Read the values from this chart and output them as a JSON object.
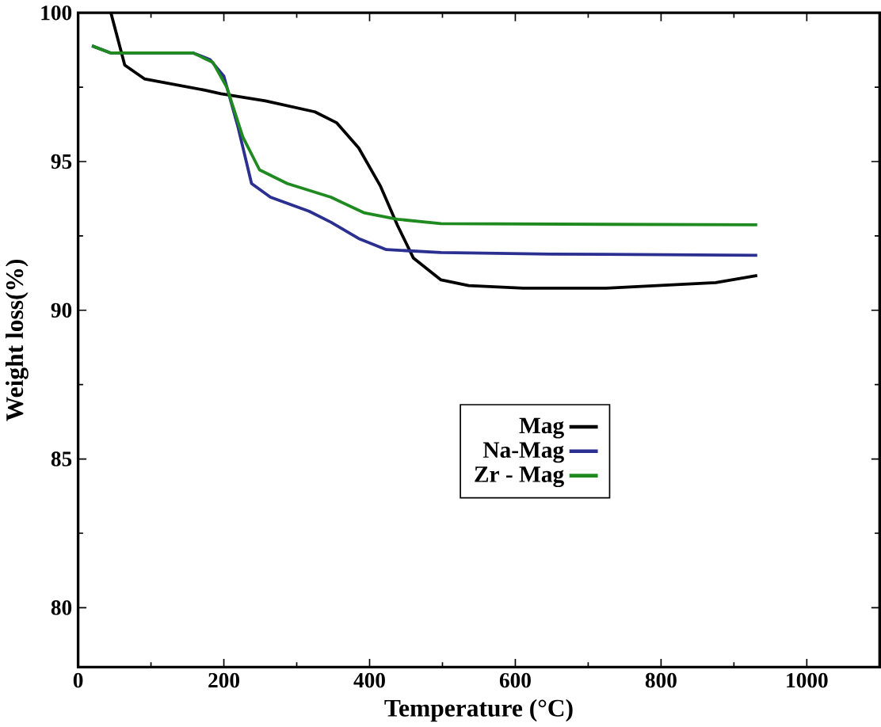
{
  "chart_data": {
    "type": "line",
    "xlabel": "Temperature (°C)",
    "ylabel": "Weight loss(%)",
    "xlim": [
      0,
      1100
    ],
    "ylim": [
      78,
      100
    ],
    "xticks": [
      0,
      200,
      400,
      600,
      800,
      1000
    ],
    "yticks": [
      80,
      85,
      90,
      95,
      100
    ],
    "grid": false,
    "legend": "center",
    "line_style": "solid",
    "marker": "none",
    "series": [
      {
        "name": "Mag",
        "color": "#000000",
        "x": [
          45,
          64,
          91,
          174,
          196,
          257,
          325,
          355,
          385,
          415,
          438,
          460,
          498,
          536,
          611,
          725,
          875,
          932
        ],
        "values": [
          100,
          98.24,
          97.78,
          97.4,
          97.28,
          97.04,
          96.67,
          96.3,
          95.46,
          94.17,
          92.87,
          91.76,
          91.02,
          90.83,
          90.74,
          90.74,
          90.93,
          91.17
        ]
      },
      {
        "name": "Na-Mag",
        "color": "#2b2f8f",
        "x": [
          19,
          45,
          158,
          181,
          200,
          219,
          238,
          264,
          317,
          347,
          385,
          423,
          498,
          649,
          932
        ],
        "values": [
          98.89,
          98.65,
          98.65,
          98.43,
          97.87,
          96.2,
          94.26,
          93.8,
          93.33,
          92.96,
          92.41,
          92.04,
          91.94,
          91.89,
          91.85
        ]
      },
      {
        "name": "Zr - Mag",
        "color": "#1f8a1f",
        "x": [
          19,
          45,
          158,
          185,
          204,
          226,
          249,
          287,
          347,
          392,
          438,
          498,
          932
        ],
        "values": [
          98.89,
          98.65,
          98.65,
          98.33,
          97.5,
          95.83,
          94.72,
          94.26,
          93.8,
          93.28,
          93.06,
          92.91,
          92.87
        ]
      }
    ]
  }
}
